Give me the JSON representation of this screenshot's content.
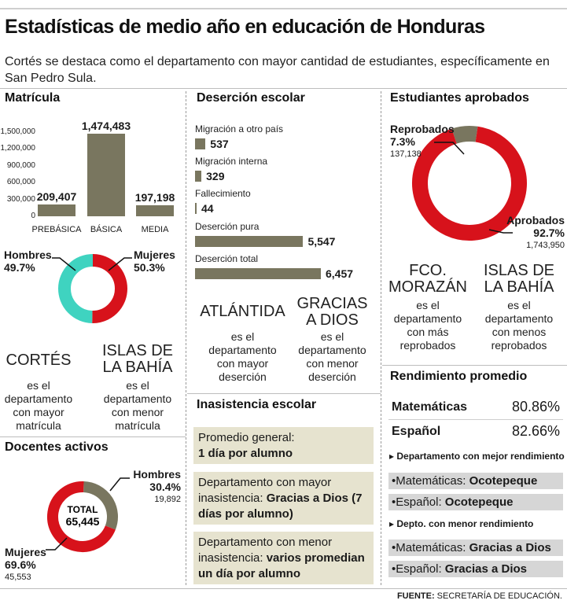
{
  "title": "Estadísticas de medio año en educación de Honduras",
  "subtitle": "Cortés se destaca como el departamento con mayor cantidad de estudiantes, específicamente en San Pedro Sula.",
  "colors": {
    "olive": "#79765f",
    "red": "#d7121b",
    "teal": "#3fd3c0",
    "box": "#e6e3cf",
    "grey": "#d6d6d6"
  },
  "matricula": {
    "heading": "Matrícula",
    "highest_dept": {
      "name_lines": [
        "CORTÉS"
      ],
      "text_lines": [
        "es el",
        "departamento",
        "con mayor",
        "matrícula"
      ]
    },
    "lowest_dept": {
      "name_lines": [
        "ISLAS DE",
        "LA BAHÍA"
      ],
      "text_lines": [
        "es el",
        "departamento",
        "con menor",
        "matrícula"
      ]
    }
  },
  "desercion": {
    "heading": "Deserción escolar",
    "highest_dept": {
      "name_lines": [
        "ATLÁNTIDA"
      ],
      "text_lines": [
        "es el",
        "departamento",
        "con mayor",
        "deserción"
      ]
    },
    "lowest_dept": {
      "name_lines": [
        "GRACIAS",
        "A DIOS"
      ],
      "text_lines": [
        "es el",
        "departamento",
        "con menor",
        "deserción"
      ]
    }
  },
  "inasistencia": {
    "heading": "Inasistencia escolar",
    "boxes": [
      {
        "normal": "Promedio general:",
        "bold": "1 día por alumno"
      },
      {
        "normal": "Departamento con mayor inasistencia: ",
        "bold": "Gracias a Dios (7 días por alumno)"
      },
      {
        "normal": "Departamento con menor inasistencia: ",
        "bold": "varios promedian un día por alumno"
      }
    ]
  },
  "aprobados": {
    "heading": "Estudiantes aprobados",
    "most_failed": {
      "name_lines": [
        "FCO.",
        "MORAZÁN"
      ],
      "text_lines": [
        "es el",
        "departamento",
        "con más",
        "reprobados"
      ]
    },
    "least_failed": {
      "name_lines": [
        "ISLAS DE",
        "LA BAHÍA"
      ],
      "text_lines": [
        "es el",
        "departamento",
        "con menos",
        "reprobados"
      ]
    }
  },
  "docentes": {
    "heading": "Docentes activos",
    "total_label": "TOTAL",
    "total_value": "65,445"
  },
  "rendimiento": {
    "heading": "Rendimiento promedio",
    "rows": [
      {
        "subject": "Matemáticas",
        "value": "80.86%"
      },
      {
        "subject": "Español",
        "value": "82.66%"
      }
    ],
    "best_note": "▸ Departamento con mejor rendimiento",
    "best": [
      {
        "subject": "•Matemáticas: ",
        "dept": "Ocotepeque"
      },
      {
        "subject": "•Español: ",
        "dept": "Ocotepeque"
      }
    ],
    "worst_note": "▸ Depto. con menor rendimiento",
    "worst": [
      {
        "subject": "•Matemáticas: ",
        "dept": "Gracias a Dios"
      },
      {
        "subject": "•Español: ",
        "dept": "Gracias a Dios"
      }
    ]
  },
  "source": {
    "label": "FUENTE:",
    "text": " SECRETARÍA DE EDUCACIÓN."
  },
  "chart_data": [
    {
      "type": "bar",
      "id": "matricula",
      "categories": [
        "PREBÁSICA",
        "BÁSICA",
        "MEDIA"
      ],
      "values": [
        209407,
        1474483,
        197198
      ],
      "value_labels": [
        "209,407",
        "1,474,483",
        "197,198"
      ],
      "yticks": [
        0,
        300000,
        600000,
        900000,
        1200000,
        1500000
      ],
      "ytick_labels": [
        "0",
        "300,000",
        "600,000",
        "900,000",
        "1,200,000",
        "1,500,000"
      ],
      "ylim": [
        0,
        1500000
      ]
    },
    {
      "type": "pie",
      "id": "matricula-genero",
      "labels": [
        "Hombres",
        "Mujeres"
      ],
      "values": [
        49.7,
        50.3
      ],
      "value_labels": [
        "49.7%",
        "50.3%"
      ],
      "colors": [
        "#3fd3c0",
        "#d7121b"
      ]
    },
    {
      "type": "bar",
      "id": "desercion",
      "orientation": "horizontal",
      "categories": [
        "Migración a otro país",
        "Migración interna",
        "Fallecimiento",
        "Deserción pura",
        "Deserción total"
      ],
      "values": [
        537,
        329,
        44,
        5547,
        6457
      ],
      "value_labels": [
        "537",
        "329",
        "44",
        "5,547",
        "6,457"
      ]
    },
    {
      "type": "pie",
      "id": "aprobados",
      "labels": [
        "Reprobados",
        "Aprobados"
      ],
      "values": [
        7.3,
        92.7
      ],
      "value_labels": [
        "7.3%",
        "92.7%"
      ],
      "counts": [
        "137,138",
        "1,743,950"
      ],
      "colors": [
        "#79765f",
        "#d7121b"
      ]
    },
    {
      "type": "pie",
      "id": "docentes",
      "labels": [
        "Hombres",
        "Mujeres"
      ],
      "values": [
        30.4,
        69.6
      ],
      "value_labels": [
        "30.4%",
        "69.6%"
      ],
      "counts": [
        "19,892",
        "45,553"
      ],
      "colors": [
        "#79765f",
        "#d7121b"
      ]
    }
  ]
}
